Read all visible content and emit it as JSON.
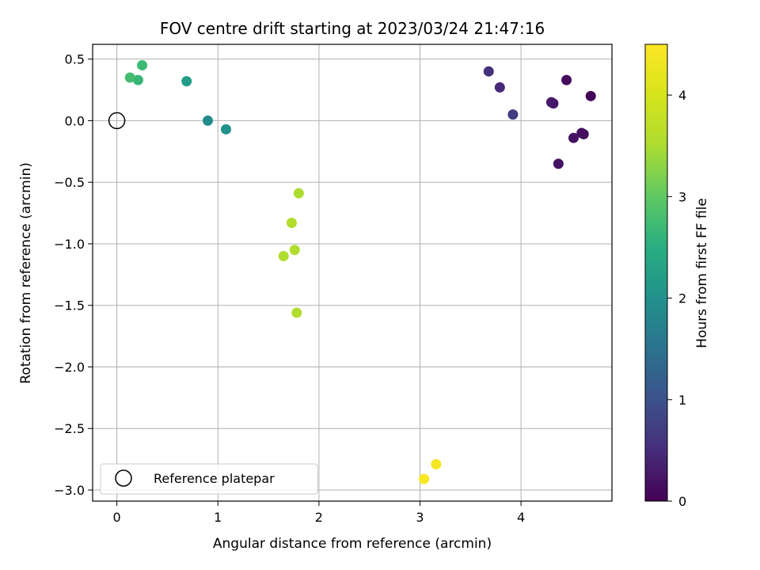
{
  "chart_data": {
    "type": "scatter",
    "title": "FOV centre drift starting at 2023/03/24 21:47:16",
    "xlabel": "Angular distance from reference (arcmin)",
    "ylabel": "Rotation from reference (arcmin)",
    "xlim": [
      -0.24,
      4.9
    ],
    "ylim": [
      -3.09,
      0.62
    ],
    "xticks": [
      0,
      1,
      2,
      3,
      4
    ],
    "xtick_labels": [
      "0",
      "1",
      "2",
      "3",
      "4"
    ],
    "yticks": [
      0.5,
      0.0,
      -0.5,
      -1.0,
      -1.5,
      -2.0,
      -2.5,
      -3.0
    ],
    "ytick_labels": [
      "0.5",
      "0.0",
      "−0.5",
      "−1.0",
      "−1.5",
      "−2.0",
      "−2.5",
      "−3.0"
    ],
    "grid": true,
    "legend": {
      "position": "lower-left",
      "entries": [
        "Reference platepar"
      ]
    },
    "reference_point": {
      "x": 0.0,
      "y": 0.0
    },
    "colormap": "viridis",
    "colorbar": {
      "label": "Hours from first FF file",
      "min": 0,
      "max": 4.5,
      "ticks": [
        0,
        1,
        2,
        3,
        4
      ],
      "tick_labels": [
        "0",
        "1",
        "2",
        "3",
        "4"
      ]
    },
    "points": [
      {
        "x": 4.69,
        "y": 0.2,
        "c": 0.05
      },
      {
        "x": 4.45,
        "y": 0.33,
        "c": 0.1
      },
      {
        "x": 4.62,
        "y": -0.11,
        "c": 0.12
      },
      {
        "x": 4.6,
        "y": -0.1,
        "c": 0.15
      },
      {
        "x": 4.52,
        "y": -0.14,
        "c": 0.18
      },
      {
        "x": 4.37,
        "y": -0.35,
        "c": 0.2
      },
      {
        "x": 4.32,
        "y": 0.14,
        "c": 0.25
      },
      {
        "x": 4.3,
        "y": 0.15,
        "c": 0.28
      },
      {
        "x": 3.79,
        "y": 0.27,
        "c": 0.45
      },
      {
        "x": 3.68,
        "y": 0.4,
        "c": 0.55
      },
      {
        "x": 3.92,
        "y": 0.05,
        "c": 0.7
      },
      {
        "x": 0.9,
        "y": 0.0,
        "c": 1.9
      },
      {
        "x": 1.08,
        "y": -0.07,
        "c": 2.0
      },
      {
        "x": 0.69,
        "y": 0.32,
        "c": 2.2
      },
      {
        "x": 0.21,
        "y": 0.33,
        "c": 2.65
      },
      {
        "x": 0.13,
        "y": 0.35,
        "c": 2.75
      },
      {
        "x": 0.25,
        "y": 0.45,
        "c": 2.7
      },
      {
        "x": 1.8,
        "y": -0.59,
        "c": 3.5
      },
      {
        "x": 1.73,
        "y": -0.83,
        "c": 3.55
      },
      {
        "x": 1.76,
        "y": -1.05,
        "c": 3.55
      },
      {
        "x": 1.65,
        "y": -1.1,
        "c": 3.55
      },
      {
        "x": 1.78,
        "y": -1.56,
        "c": 3.55
      },
      {
        "x": 3.16,
        "y": -2.79,
        "c": 4.4
      },
      {
        "x": 3.04,
        "y": -2.91,
        "c": 4.45
      }
    ]
  }
}
